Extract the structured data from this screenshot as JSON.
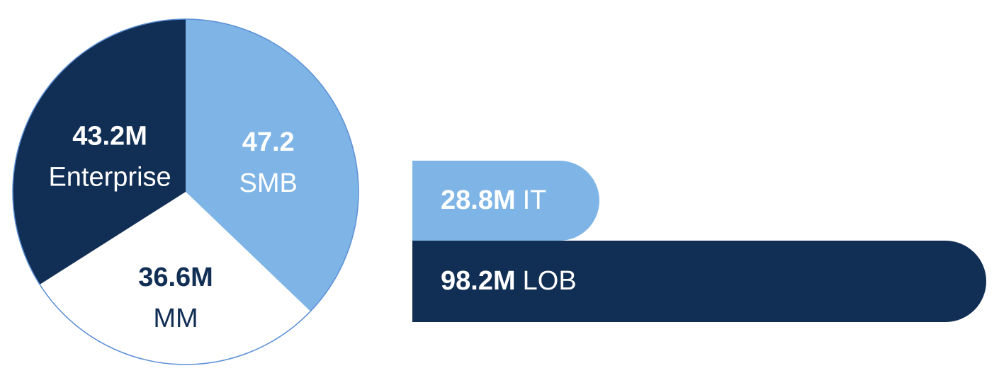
{
  "chart_data": [
    {
      "type": "pie",
      "slices": [
        {
          "label": "SMB",
          "value_text": "47.2",
          "value": 47.2,
          "color": "#7fb5e6",
          "text_color": "#ffffff"
        },
        {
          "label": "MM",
          "value_text": "36.6M",
          "value": 36.6,
          "color": "#ffffff",
          "text_color": "#112e55"
        },
        {
          "label": "Enterprise",
          "value_text": "43.2M",
          "value": 43.2,
          "color": "#112e55",
          "text_color": "#ffffff"
        }
      ],
      "outline_color": "#5b8fd6"
    },
    {
      "type": "bar",
      "orientation": "horizontal",
      "categories": [
        "IT",
        "LOB"
      ],
      "values": [
        28.8,
        98.2
      ],
      "value_texts": [
        "28.8M",
        "98.2M"
      ],
      "colors": [
        "#7fb5e6",
        "#112e55"
      ],
      "text_colors": [
        "#ffffff",
        "#ffffff"
      ]
    }
  ]
}
